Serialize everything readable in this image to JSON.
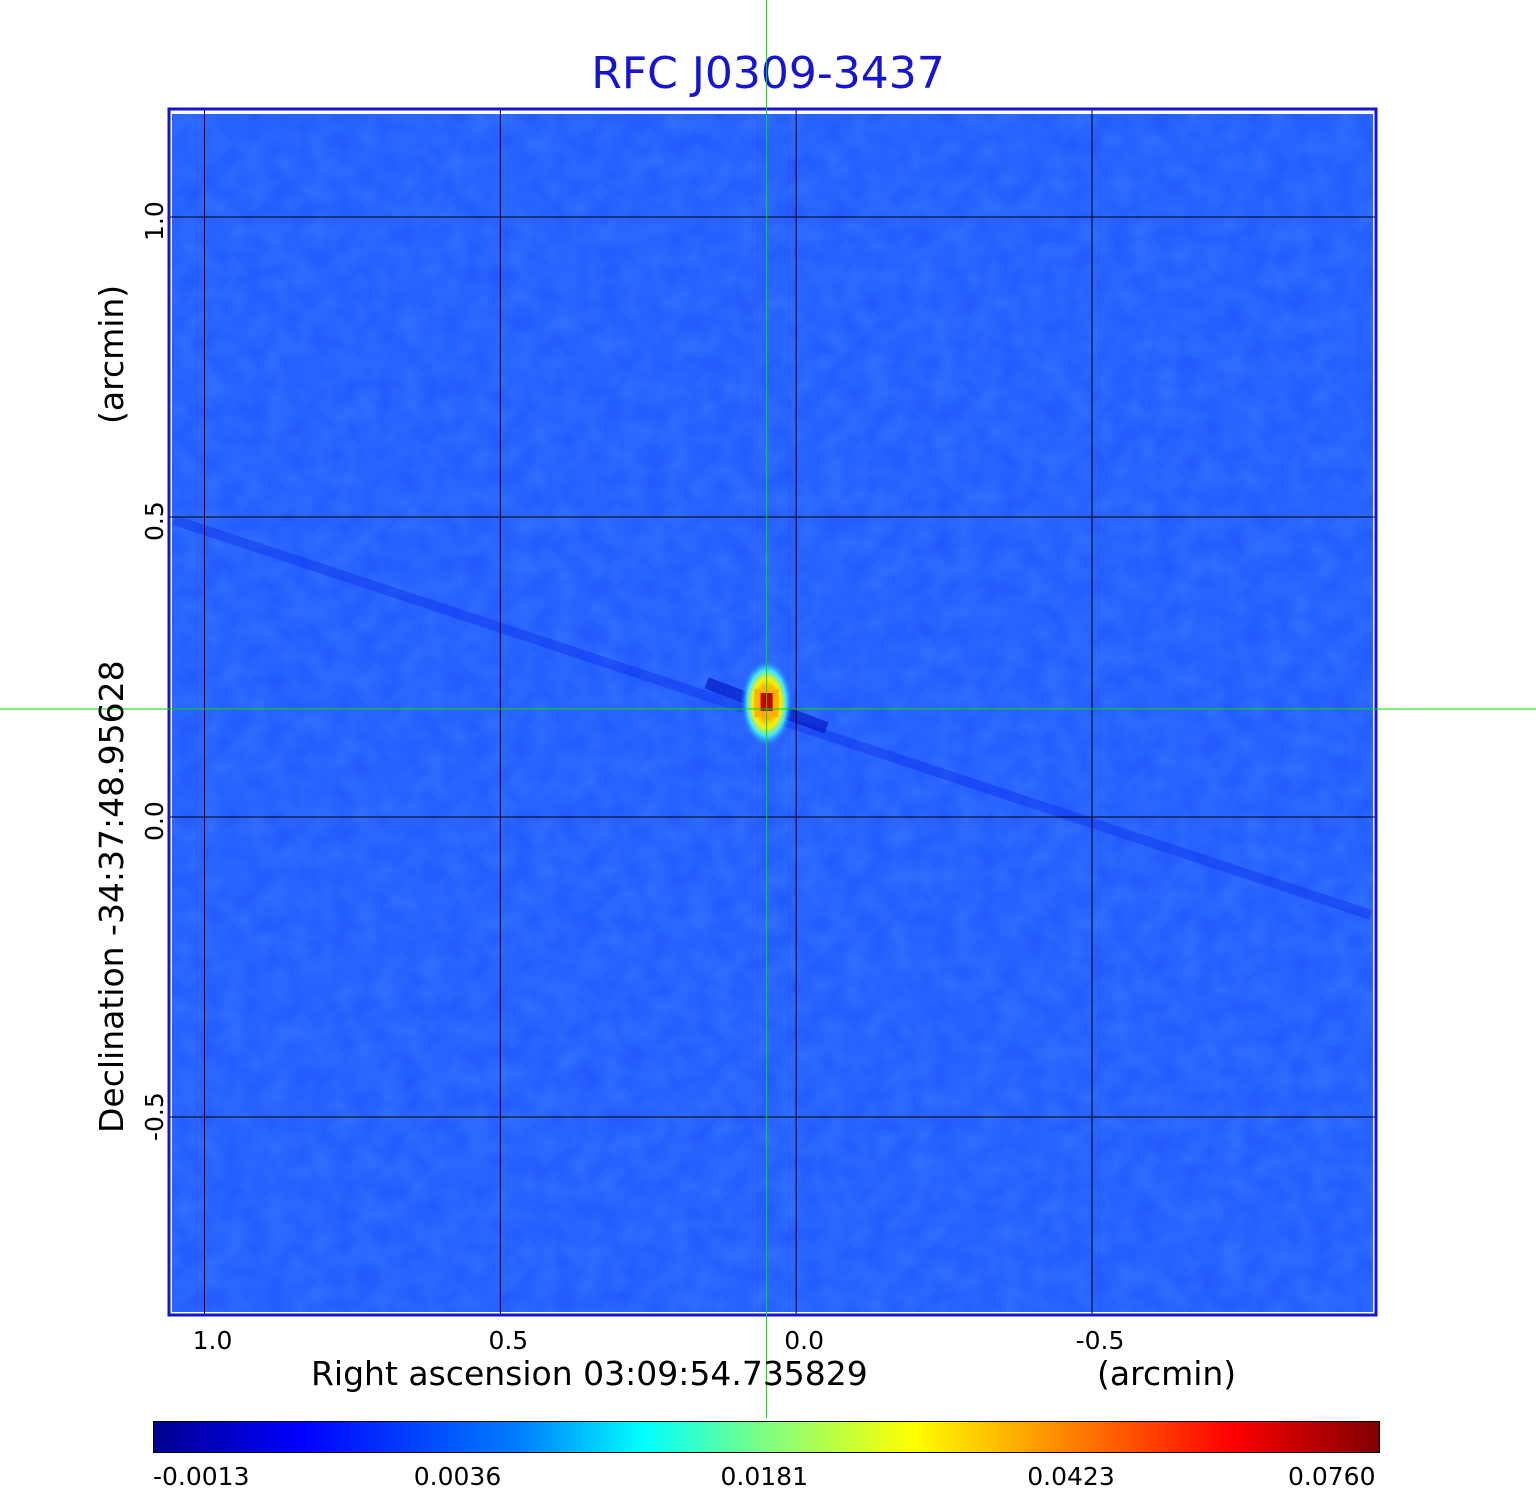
{
  "chart_data": {
    "type": "heatmap",
    "title": "RFC J0309-3437",
    "xlabel": "Right ascension  03:09:54.735829",
    "xunit": "(arcmin)",
    "ylabel": "Declination  -34:37:48.95628",
    "yunit": "(arcmin)",
    "x_ticks": [
      "1.0",
      "0.5",
      "0.0",
      "-0.5"
    ],
    "x_tick_values": [
      1.0,
      0.5,
      0.0,
      -0.5
    ],
    "y_ticks": [
      "1.0",
      "0.5",
      "0.0",
      "-0.5"
    ],
    "y_tick_values": [
      1.0,
      0.5,
      0.0,
      -0.5
    ],
    "xlim": [
      1.06,
      -0.98
    ],
    "ylim": [
      -0.83,
      1.18
    ],
    "grid": true,
    "crosshair": {
      "x": 0.05,
      "y": 0.18,
      "color": "#00dd00"
    },
    "source_peak": {
      "x": 0.05,
      "y": 0.19,
      "value": 0.076
    },
    "colorbar": {
      "tick_labels": [
        "-0.0013",
        "0.0036",
        "0.0181",
        "0.0423",
        "0.0760"
      ],
      "tick_values": [
        -0.0013,
        0.0036,
        0.0181,
        0.0423,
        0.076
      ],
      "colormap": "jet"
    },
    "colors": {
      "background_field": "#1f55ff",
      "frame": "#1414d2",
      "title": "#1414d2"
    }
  }
}
